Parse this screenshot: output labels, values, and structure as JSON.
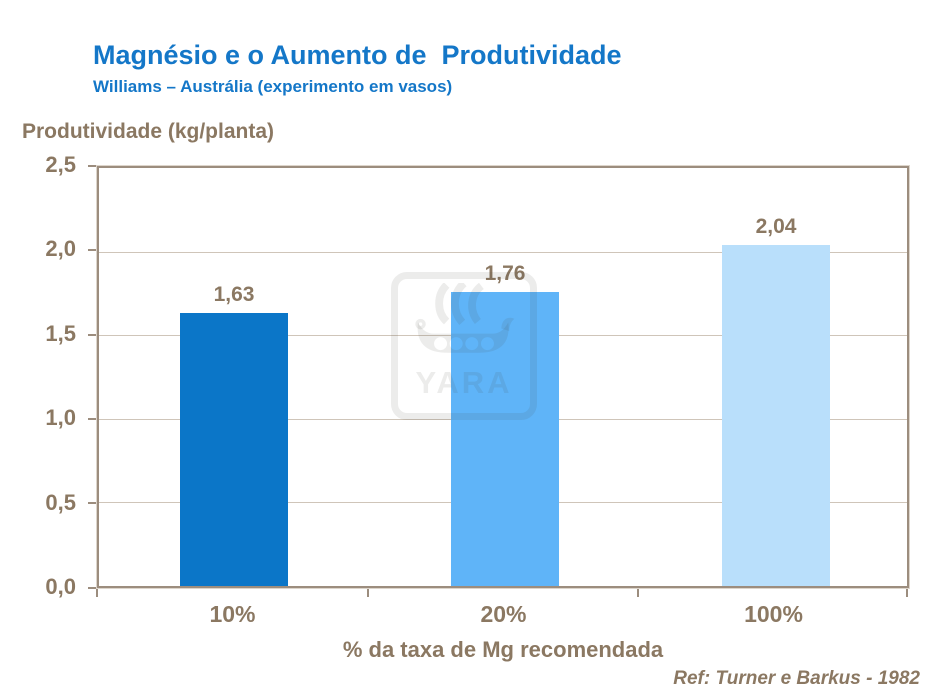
{
  "header": {
    "title": "Magnésio e o Aumento de  Produtividade",
    "subtitle": "Williams – Austrália (experimento em vasos)"
  },
  "chart_data": {
    "type": "bar",
    "title": "Magnésio e o Aumento de Produtividade",
    "subtitle": "Williams – Austrália (experimento em vasos)",
    "categories": [
      "10%",
      "20%",
      "100%"
    ],
    "values": [
      1.63,
      1.76,
      2.04
    ],
    "value_labels": [
      "1,63",
      "1,76",
      "2,04"
    ],
    "xlabel": "% da taxa de Mg recomendada",
    "ylabel": "Produtividade (kg/planta)",
    "ylim": [
      0,
      2.5
    ],
    "ytick_labels": [
      "2,5",
      "2,0",
      "1,5",
      "1,0",
      "0,5",
      "0,0"
    ],
    "grid": true,
    "legend": false,
    "bar_colors": [
      "#0B76C8",
      "#5FB4F8",
      "#B9DFFB"
    ]
  },
  "watermark": {
    "label": "YARA",
    "logo_icon": "yara-viking-ship-logo"
  },
  "footer": {
    "reference": "Ref: Turner e Barkus - 1982"
  },
  "colors": {
    "title_blue": "#1477C8",
    "text_brown": "#8B7862",
    "axis": "#9C8D7E",
    "grid": "#CFC5B9",
    "watermark": "rgba(70,64,58,0.10)"
  }
}
